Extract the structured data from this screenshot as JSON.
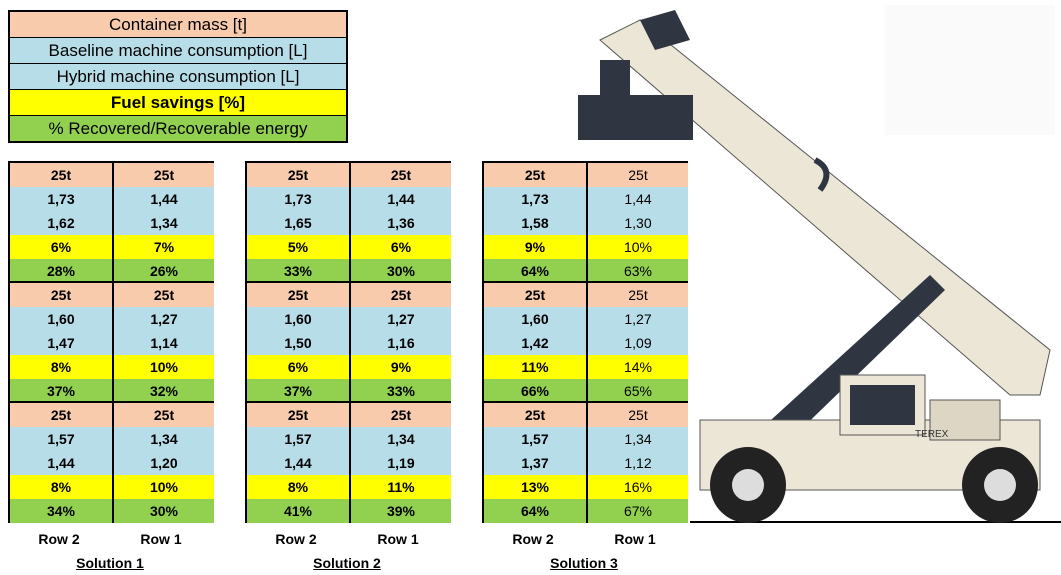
{
  "legend": [
    "Container mass [t]",
    "Baseline machine consumption [L]",
    "Hybrid machine consumption [L]",
    "Fuel savings [%]",
    "% Recovered/Recoverable energy"
  ],
  "solutions": [
    {
      "label": "Solution 1",
      "columns": [
        "Row 2",
        "Row 1"
      ],
      "blocks": [
        [
          [
            "25t",
            "25t"
          ],
          [
            "1,73",
            "1,44"
          ],
          [
            "1,62",
            "1,34"
          ],
          [
            "6%",
            "7%"
          ],
          [
            "28%",
            "26%"
          ]
        ],
        [
          [
            "25t",
            "25t"
          ],
          [
            "1,60",
            "1,27"
          ],
          [
            "1,47",
            "1,14"
          ],
          [
            "8%",
            "10%"
          ],
          [
            "37%",
            "32%"
          ]
        ],
        [
          [
            "25t",
            "25t"
          ],
          [
            "1,57",
            "1,34"
          ],
          [
            "1,44",
            "1,20"
          ],
          [
            "8%",
            "10%"
          ],
          [
            "34%",
            "30%"
          ]
        ]
      ]
    },
    {
      "label": "Solution 2",
      "columns": [
        "Row 2",
        "Row 1"
      ],
      "blocks": [
        [
          [
            "25t",
            "25t"
          ],
          [
            "1,73",
            "1,44"
          ],
          [
            "1,65",
            "1,36"
          ],
          [
            "5%",
            "6%"
          ],
          [
            "33%",
            "30%"
          ]
        ],
        [
          [
            "25t",
            "25t"
          ],
          [
            "1,60",
            "1,27"
          ],
          [
            "1,50",
            "1,16"
          ],
          [
            "6%",
            "9%"
          ],
          [
            "37%",
            "33%"
          ]
        ],
        [
          [
            "25t",
            "25t"
          ],
          [
            "1,57",
            "1,34"
          ],
          [
            "1,44",
            "1,19"
          ],
          [
            "8%",
            "11%"
          ],
          [
            "41%",
            "39%"
          ]
        ]
      ]
    },
    {
      "label": "Solution 3",
      "columns": [
        "Row 2",
        "Row 1"
      ],
      "blocks": [
        [
          [
            "25t",
            "25t"
          ],
          [
            "1,73",
            "1,44"
          ],
          [
            "1,58",
            "1,30"
          ],
          [
            "9%",
            "10%"
          ],
          [
            "64%",
            "63%"
          ]
        ],
        [
          [
            "25t",
            "25t"
          ],
          [
            "1,60",
            "1,27"
          ],
          [
            "1,42",
            "1,09"
          ],
          [
            "11%",
            "14%"
          ],
          [
            "66%",
            "65%"
          ]
        ],
        [
          [
            "25t",
            "25t"
          ],
          [
            "1,57",
            "1,34"
          ],
          [
            "1,37",
            "1,12"
          ],
          [
            "13%",
            "16%"
          ],
          [
            "64%",
            "67%"
          ]
        ]
      ]
    }
  ]
}
